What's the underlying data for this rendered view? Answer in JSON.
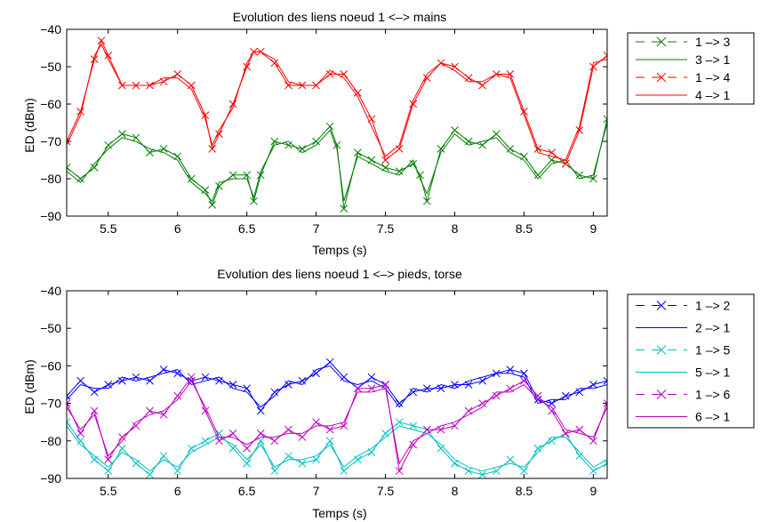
{
  "chart_data": [
    {
      "type": "line",
      "title": "Evolution des liens noeud 1 <–> mains",
      "xlabel": "Temps (s)",
      "ylabel": "ED (dBm)",
      "xlim": [
        5.2,
        9.1
      ],
      "ylim": [
        -90,
        -40
      ],
      "xticks": [
        "5.5",
        "6",
        "6.5",
        "7",
        "7.5",
        "8",
        "8.5",
        "9"
      ],
      "yticks": [
        "−40",
        "−50",
        "−60",
        "−70",
        "−80",
        "−90"
      ],
      "legend_position": "outside-right",
      "series": [
        {
          "name": "1 –> 3",
          "color": "#007f00",
          "linestyle": "dashed",
          "marker": "x",
          "x": [
            5.2,
            5.3,
            5.4,
            5.5,
            5.6,
            5.7,
            5.8,
            5.9,
            6.0,
            6.1,
            6.2,
            6.25,
            6.3,
            6.4,
            6.5,
            6.55,
            6.6,
            6.7,
            6.8,
            6.9,
            7.0,
            7.1,
            7.15,
            7.2,
            7.3,
            7.4,
            7.5,
            7.6,
            7.7,
            7.75,
            7.8,
            7.9,
            8.0,
            8.1,
            8.2,
            8.3,
            8.4,
            8.5,
            8.6,
            8.7,
            8.8,
            8.9,
            9.0,
            9.1
          ],
          "y": [
            -77,
            -80,
            -77,
            -71,
            -68,
            -69,
            -73,
            -72,
            -74,
            -80,
            -83,
            -87,
            -82,
            -79,
            -79,
            -86,
            -79,
            -70,
            -71,
            -72,
            -70,
            -66,
            -71,
            -88,
            -73,
            -75,
            -77,
            -78,
            -76,
            -79,
            -86,
            -72,
            -67,
            -70,
            -71,
            -68,
            -72,
            -74,
            -79,
            -75,
            -76,
            -79,
            -80,
            -64
          ]
        },
        {
          "name": "3 –> 1",
          "color": "#007f00",
          "linestyle": "solid",
          "marker": "none",
          "x": [
            5.2,
            5.3,
            5.4,
            5.5,
            5.6,
            5.7,
            5.8,
            5.9,
            6.0,
            6.1,
            6.2,
            6.25,
            6.3,
            6.4,
            6.5,
            6.55,
            6.6,
            6.7,
            6.8,
            6.9,
            7.0,
            7.1,
            7.15,
            7.2,
            7.3,
            7.4,
            7.5,
            7.6,
            7.7,
            7.75,
            7.8,
            7.9,
            8.0,
            8.1,
            8.2,
            8.3,
            8.4,
            8.5,
            8.6,
            8.7,
            8.8,
            8.9,
            9.0,
            9.1
          ],
          "y": [
            -78,
            -81,
            -76,
            -72,
            -69,
            -70,
            -72,
            -73,
            -75,
            -81,
            -84,
            -86,
            -81,
            -80,
            -80,
            -85,
            -78,
            -71,
            -70,
            -73,
            -71,
            -67,
            -72,
            -86,
            -74,
            -76,
            -78,
            -79,
            -75,
            -80,
            -84,
            -73,
            -68,
            -71,
            -70,
            -69,
            -73,
            -75,
            -80,
            -76,
            -75,
            -80,
            -79,
            -65
          ]
        },
        {
          "name": "1 –> 4",
          "color": "#ff0000",
          "linestyle": "dashed",
          "marker": "x",
          "x": [
            5.2,
            5.3,
            5.4,
            5.45,
            5.5,
            5.6,
            5.7,
            5.8,
            5.9,
            6.0,
            6.1,
            6.2,
            6.25,
            6.3,
            6.4,
            6.5,
            6.55,
            6.6,
            6.7,
            6.8,
            6.9,
            7.0,
            7.1,
            7.2,
            7.3,
            7.4,
            7.5,
            7.6,
            7.7,
            7.8,
            7.9,
            8.0,
            8.1,
            8.2,
            8.3,
            8.4,
            8.5,
            8.6,
            8.7,
            8.8,
            8.9,
            9.0,
            9.1
          ],
          "y": [
            -70,
            -62,
            -48,
            -43,
            -47,
            -55,
            -55,
            -55,
            -54,
            -52,
            -55,
            -63,
            -72,
            -68,
            -60,
            -50,
            -46,
            -46,
            -49,
            -55,
            -55,
            -55,
            -52,
            -52,
            -57,
            -64,
            -75,
            -72,
            -60,
            -53,
            -49,
            -50,
            -53,
            -55,
            -52,
            -52,
            -62,
            -72,
            -73,
            -76,
            -67,
            -50,
            -47
          ]
        },
        {
          "name": "4 –> 1",
          "color": "#ff0000",
          "linestyle": "solid",
          "marker": "none",
          "x": [
            5.2,
            5.3,
            5.4,
            5.45,
            5.5,
            5.6,
            5.7,
            5.8,
            5.9,
            6.0,
            6.1,
            6.2,
            6.25,
            6.3,
            6.4,
            6.5,
            6.55,
            6.6,
            6.7,
            6.8,
            6.9,
            7.0,
            7.1,
            7.2,
            7.3,
            7.4,
            7.5,
            7.6,
            7.7,
            7.8,
            7.9,
            8.0,
            8.1,
            8.2,
            8.3,
            8.4,
            8.5,
            8.6,
            8.7,
            8.8,
            8.9,
            9.0,
            9.1
          ],
          "y": [
            -71,
            -63,
            -47,
            -44,
            -48,
            -55,
            -55,
            -55,
            -53,
            -53,
            -56,
            -64,
            -71,
            -67,
            -61,
            -49,
            -46,
            -46,
            -48,
            -54,
            -55,
            -55,
            -51,
            -53,
            -58,
            -66,
            -74,
            -71,
            -59,
            -52,
            -49,
            -51,
            -54,
            -54,
            -52,
            -53,
            -63,
            -73,
            -74,
            -75,
            -66,
            -49,
            -48
          ]
        }
      ]
    },
    {
      "type": "line",
      "title": "Evolution des liens noeud 1 <–> pieds, torse",
      "xlabel": "Temps (s)",
      "ylabel": "ED (dBm)",
      "xlim": [
        5.2,
        9.1
      ],
      "ylim": [
        -90,
        -40
      ],
      "xticks": [
        "5.5",
        "6",
        "6.5",
        "7",
        "7.5",
        "8",
        "8.5",
        "9"
      ],
      "yticks": [
        "−40",
        "−50",
        "−60",
        "−70",
        "−80",
        "−90"
      ],
      "legend_position": "outside-right",
      "series": [
        {
          "name": "1 –> 2",
          "color": "#0000ff",
          "linestyle": "dashed",
          "marker": "x",
          "x": [
            5.2,
            5.3,
            5.4,
            5.5,
            5.6,
            5.7,
            5.8,
            5.9,
            6.0,
            6.1,
            6.2,
            6.3,
            6.4,
            6.5,
            6.6,
            6.7,
            6.8,
            6.9,
            7.0,
            7.1,
            7.2,
            7.3,
            7.4,
            7.5,
            7.6,
            7.7,
            7.8,
            7.9,
            8.0,
            8.1,
            8.2,
            8.3,
            8.4,
            8.5,
            8.6,
            8.7,
            8.8,
            8.9,
            9.0,
            9.1
          ],
          "y": [
            -68,
            -64,
            -67,
            -65,
            -64,
            -63,
            -64,
            -61,
            -62,
            -64,
            -63,
            -64,
            -65,
            -66,
            -72,
            -67,
            -65,
            -64,
            -62,
            -59,
            -63,
            -66,
            -63,
            -65,
            -70,
            -67,
            -66,
            -66,
            -65,
            -65,
            -64,
            -62,
            -61,
            -62,
            -69,
            -70,
            -68,
            -67,
            -65,
            -64
          ]
        },
        {
          "name": "2 –> 1",
          "color": "#0000ff",
          "linestyle": "solid",
          "marker": "none",
          "x": [
            5.2,
            5.3,
            5.4,
            5.5,
            5.6,
            5.7,
            5.8,
            5.9,
            6.0,
            6.1,
            6.2,
            6.3,
            6.4,
            6.5,
            6.6,
            6.7,
            6.8,
            6.9,
            7.0,
            7.1,
            7.2,
            7.3,
            7.4,
            7.5,
            7.6,
            7.7,
            7.8,
            7.9,
            8.0,
            8.1,
            8.2,
            8.3,
            8.4,
            8.5,
            8.6,
            8.7,
            8.8,
            8.9,
            9.0,
            9.1
          ],
          "y": [
            -69,
            -65,
            -66,
            -66,
            -63,
            -64,
            -63,
            -62,
            -61,
            -65,
            -64,
            -63,
            -66,
            -67,
            -71,
            -68,
            -64,
            -65,
            -61,
            -60,
            -64,
            -65,
            -64,
            -66,
            -71,
            -66,
            -67,
            -65,
            -66,
            -64,
            -63,
            -62,
            -62,
            -63,
            -70,
            -69,
            -69,
            -66,
            -66,
            -65
          ]
        },
        {
          "name": "1 –> 5",
          "color": "#00bfbf",
          "linestyle": "dashed",
          "marker": "x",
          "x": [
            5.2,
            5.3,
            5.4,
            5.5,
            5.6,
            5.7,
            5.8,
            5.9,
            6.0,
            6.1,
            6.2,
            6.3,
            6.4,
            6.5,
            6.6,
            6.7,
            6.8,
            6.9,
            7.0,
            7.1,
            7.2,
            7.3,
            7.4,
            7.5,
            7.6,
            7.7,
            7.8,
            7.9,
            8.0,
            8.1,
            8.2,
            8.3,
            8.4,
            8.5,
            8.6,
            8.7,
            8.8,
            8.9,
            9.0,
            9.1
          ],
          "y": [
            -75,
            -80,
            -85,
            -88,
            -82,
            -86,
            -89,
            -84,
            -88,
            -82,
            -80,
            -78,
            -82,
            -86,
            -80,
            -88,
            -84,
            -86,
            -85,
            -80,
            -88,
            -85,
            -83,
            -78,
            -75,
            -76,
            -77,
            -82,
            -86,
            -88,
            -89,
            -88,
            -85,
            -88,
            -82,
            -80,
            -78,
            -84,
            -88,
            -86
          ]
        },
        {
          "name": "5 –> 1",
          "color": "#00bfbf",
          "linestyle": "solid",
          "marker": "none",
          "x": [
            5.2,
            5.3,
            5.4,
            5.5,
            5.6,
            5.7,
            5.8,
            5.9,
            6.0,
            6.1,
            6.2,
            6.3,
            6.4,
            6.5,
            6.6,
            6.7,
            6.8,
            6.9,
            7.0,
            7.1,
            7.2,
            7.3,
            7.4,
            7.5,
            7.6,
            7.7,
            7.8,
            7.9,
            8.0,
            8.1,
            8.2,
            8.3,
            8.4,
            8.5,
            8.6,
            8.7,
            8.8,
            8.9,
            9.0,
            9.1
          ],
          "y": [
            -76,
            -81,
            -84,
            -87,
            -83,
            -85,
            -88,
            -85,
            -87,
            -83,
            -81,
            -79,
            -81,
            -85,
            -81,
            -87,
            -85,
            -85,
            -84,
            -81,
            -87,
            -84,
            -82,
            -79,
            -76,
            -77,
            -78,
            -81,
            -85,
            -87,
            -88,
            -87,
            -86,
            -87,
            -83,
            -79,
            -79,
            -83,
            -87,
            -85
          ]
        },
        {
          "name": "1 –> 6",
          "color": "#bf00bf",
          "linestyle": "dashed",
          "marker": "x",
          "x": [
            5.2,
            5.3,
            5.4,
            5.5,
            5.6,
            5.7,
            5.8,
            5.9,
            6.0,
            6.1,
            6.2,
            6.3,
            6.4,
            6.5,
            6.6,
            6.7,
            6.8,
            6.9,
            7.0,
            7.1,
            7.2,
            7.3,
            7.4,
            7.5,
            7.6,
            7.7,
            7.8,
            7.9,
            8.0,
            8.1,
            8.2,
            8.3,
            8.4,
            8.5,
            8.6,
            8.7,
            8.8,
            8.9,
            9.0,
            9.1
          ],
          "y": [
            -70,
            -78,
            -72,
            -85,
            -79,
            -76,
            -72,
            -73,
            -68,
            -63,
            -72,
            -80,
            -78,
            -82,
            -78,
            -80,
            -77,
            -79,
            -75,
            -77,
            -76,
            -66,
            -66,
            -65,
            -88,
            -81,
            -77,
            -77,
            -76,
            -72,
            -70,
            -68,
            -66,
            -64,
            -68,
            -72,
            -78,
            -77,
            -80,
            -70
          ]
        },
        {
          "name": "6 –> 1",
          "color": "#bf00bf",
          "linestyle": "solid",
          "marker": "none",
          "x": [
            5.2,
            5.3,
            5.4,
            5.5,
            5.6,
            5.7,
            5.8,
            5.9,
            6.0,
            6.1,
            6.2,
            6.3,
            6.4,
            6.5,
            6.6,
            6.7,
            6.8,
            6.9,
            7.0,
            7.1,
            7.2,
            7.3,
            7.4,
            7.5,
            7.6,
            7.7,
            7.8,
            7.9,
            8.0,
            8.1,
            8.2,
            8.3,
            8.4,
            8.5,
            8.6,
            8.7,
            8.8,
            8.9,
            9.0,
            9.1
          ],
          "y": [
            -71,
            -77,
            -73,
            -84,
            -80,
            -75,
            -73,
            -72,
            -69,
            -64,
            -71,
            -79,
            -79,
            -81,
            -79,
            -79,
            -78,
            -78,
            -76,
            -76,
            -75,
            -67,
            -67,
            -66,
            -86,
            -80,
            -78,
            -76,
            -75,
            -73,
            -71,
            -67,
            -67,
            -65,
            -69,
            -71,
            -77,
            -78,
            -79,
            -71
          ]
        }
      ]
    }
  ]
}
